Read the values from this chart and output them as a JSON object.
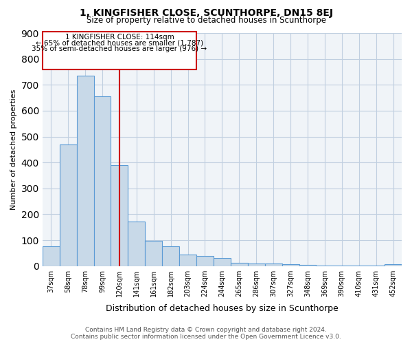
{
  "title": "1, KINGFISHER CLOSE, SCUNTHORPE, DN15 8EJ",
  "subtitle": "Size of property relative to detached houses in Scunthorpe",
  "xlabel": "Distribution of detached houses by size in Scunthorpe",
  "ylabel": "Number of detached properties",
  "categories": [
    "37sqm",
    "58sqm",
    "78sqm",
    "99sqm",
    "120sqm",
    "141sqm",
    "161sqm",
    "182sqm",
    "203sqm",
    "224sqm",
    "244sqm",
    "265sqm",
    "286sqm",
    "307sqm",
    "327sqm",
    "348sqm",
    "369sqm",
    "390sqm",
    "410sqm",
    "431sqm",
    "452sqm"
  ],
  "values": [
    75,
    470,
    735,
    655,
    390,
    172,
    98,
    75,
    43,
    40,
    30,
    13,
    11,
    10,
    7,
    5,
    3,
    2,
    2,
    2,
    7
  ],
  "bar_color": "#c8d9e8",
  "bar_edge_color": "#5b9bd5",
  "vline_x": 4,
  "vline_color": "#cc0000",
  "annotation_line1": "1 KINGFISHER CLOSE: 114sqm",
  "annotation_line2": "← 65% of detached houses are smaller (1,787)",
  "annotation_line3": "35% of semi-detached houses are larger (976) →",
  "annotation_box_color": "#cc0000",
  "ylim": [
    0,
    900
  ],
  "yticks": [
    0,
    100,
    200,
    300,
    400,
    500,
    600,
    700,
    800,
    900
  ],
  "footer_line1": "Contains HM Land Registry data © Crown copyright and database right 2024.",
  "footer_line2": "Contains public sector information licensed under the Open Government Licence v3.0.",
  "bg_color": "#f0f4f8",
  "grid_color": "#c0cfe0"
}
